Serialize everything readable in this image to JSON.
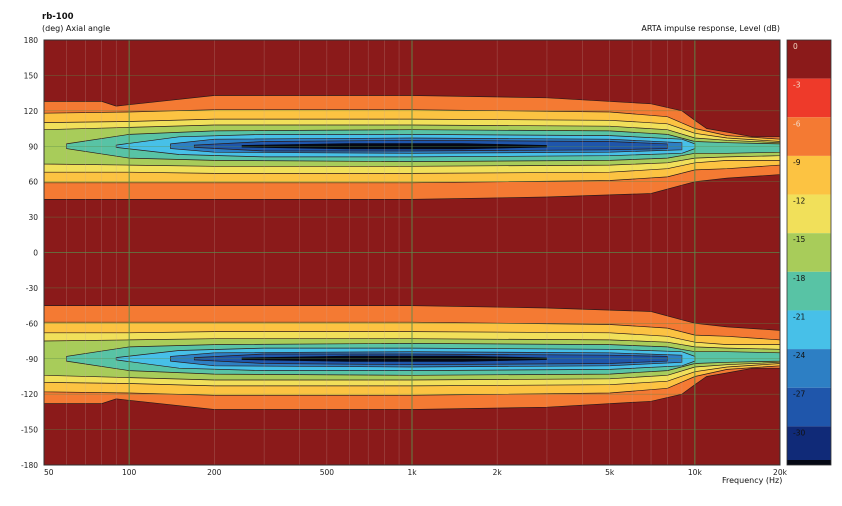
{
  "chart_data": {
    "type": "heatmap",
    "title": "rb-100",
    "ylabel": "(deg)  Axial angle",
    "xlabel": "Frequency  (Hz)",
    "colorbar_label": "ARTA impulse response, Level  (dB)",
    "x_scale": "log",
    "xlim": [
      50,
      20000
    ],
    "ylim": [
      -180,
      180
    ],
    "x_ticks": [
      {
        "value": 50,
        "label": "50"
      },
      {
        "value": 100,
        "label": "100"
      },
      {
        "value": 200,
        "label": "200"
      },
      {
        "value": 500,
        "label": "500"
      },
      {
        "value": 1000,
        "label": "1k"
      },
      {
        "value": 2000,
        "label": "2k"
      },
      {
        "value": 5000,
        "label": "5k"
      },
      {
        "value": 10000,
        "label": "10k"
      },
      {
        "value": 20000,
        "label": "20k"
      }
    ],
    "y_ticks": [
      180,
      150,
      120,
      90,
      60,
      30,
      0,
      -30,
      -60,
      -90,
      -120,
      -150,
      -180
    ],
    "grid": true,
    "colorbar": {
      "levels": [
        {
          "value": 0,
          "label": "0",
          "color": "#8b1a1a"
        },
        {
          "value": -3,
          "label": "-3",
          "color": "#ee3a2a"
        },
        {
          "value": -6,
          "label": "-6",
          "color": "#f47a33"
        },
        {
          "value": -9,
          "label": "-9",
          "color": "#fcc342"
        },
        {
          "value": -12,
          "label": "-12",
          "color": "#f1e05a"
        },
        {
          "value": -15,
          "label": "-15",
          "color": "#a8cc5a"
        },
        {
          "value": -18,
          "label": "-18",
          "color": "#58c3a5"
        },
        {
          "value": -21,
          "label": "-21",
          "color": "#47c0e8"
        },
        {
          "value": -24,
          "label": "-24",
          "color": "#2d7fc4"
        },
        {
          "value": -27,
          "label": "-27",
          "color": "#1f56ab"
        },
        {
          "value": -30,
          "label": "-30",
          "color": "#102a78"
        }
      ],
      "floor_color": "#050814"
    },
    "series": [
      {
        "angle_center": 90,
        "contours": [
          {
            "level": -3,
            "pts": [
              [
                50,
                128
              ],
              [
                80,
                128
              ],
              [
                90,
                124
              ],
              [
                200,
                133
              ],
              [
                1000,
                133
              ],
              [
                3000,
                131
              ],
              [
                7000,
                126
              ],
              [
                9000,
                120
              ],
              [
                10000,
                112
              ],
              [
                11000,
                105
              ],
              [
                13000,
                102
              ],
              [
                16000,
                98
              ],
              [
                20000,
                98
              ]
            ],
            "low": [
              [
                50,
                45
              ],
              [
                1000,
                45
              ],
              [
                3000,
                47
              ],
              [
                7000,
                50
              ],
              [
                10000,
                60
              ],
              [
                13000,
                63
              ],
              [
                20000,
                66
              ]
            ]
          },
          {
            "level": -6,
            "pts": [
              [
                50,
                118
              ],
              [
                100,
                119
              ],
              [
                200,
                121
              ],
              [
                1000,
                121
              ],
              [
                5000,
                119
              ],
              [
                8000,
                115
              ],
              [
                10000,
                105
              ],
              [
                13000,
                99
              ],
              [
                20000,
                96
              ]
            ],
            "low": [
              [
                50,
                59
              ],
              [
                1000,
                59
              ],
              [
                5000,
                61
              ],
              [
                8000,
                64
              ],
              [
                10000,
                70
              ],
              [
                13000,
                71
              ],
              [
                20000,
                74
              ]
            ]
          },
          {
            "level": -9,
            "pts": [
              [
                50,
                110
              ],
              [
                100,
                111
              ],
              [
                200,
                113
              ],
              [
                1000,
                113
              ],
              [
                5000,
                112
              ],
              [
                8000,
                109
              ],
              [
                10000,
                101
              ],
              [
                13000,
                97
              ],
              [
                20000,
                94
              ]
            ],
            "low": [
              [
                50,
                68
              ],
              [
                100,
                68
              ],
              [
                200,
                67
              ],
              [
                1000,
                67
              ],
              [
                5000,
                68
              ],
              [
                8000,
                71
              ],
              [
                10000,
                76
              ],
              [
                13000,
                78
              ],
              [
                20000,
                78
              ]
            ]
          },
          {
            "level": -12,
            "pts": [
              [
                50,
                104
              ],
              [
                100,
                106
              ],
              [
                200,
                108
              ],
              [
                1000,
                108
              ],
              [
                5000,
                107
              ],
              [
                8000,
                104
              ],
              [
                10000,
                97
              ],
              [
                13000,
                95
              ],
              [
                20000,
                93
              ]
            ],
            "low": [
              [
                50,
                75
              ],
              [
                100,
                74
              ],
              [
                200,
                73
              ],
              [
                1000,
                73
              ],
              [
                5000,
                74
              ],
              [
                8000,
                76
              ],
              [
                10000,
                80
              ],
              [
                13000,
                81
              ],
              [
                20000,
                82
              ]
            ]
          },
          {
            "level": -15,
            "pts": [
              [
                60,
                92
              ],
              [
                100,
                100
              ],
              [
                200,
                103
              ],
              [
                1000,
                104
              ],
              [
                5000,
                103
              ],
              [
                8000,
                100
              ],
              [
                10000,
                94
              ],
              [
                13000,
                93
              ],
              [
                20000,
                92
              ]
            ],
            "low": [
              [
                60,
                88
              ],
              [
                100,
                80
              ],
              [
                200,
                78
              ],
              [
                1000,
                77
              ],
              [
                5000,
                78
              ],
              [
                8000,
                80
              ],
              [
                10000,
                84
              ],
              [
                13000,
                84
              ],
              [
                20000,
                85
              ]
            ]
          },
          {
            "level": -18,
            "pts": [
              [
                90,
                91
              ],
              [
                150,
                98
              ],
              [
                300,
                100
              ],
              [
                1000,
                100
              ],
              [
                5000,
                99
              ],
              [
                9000,
                96
              ],
              [
                10000,
                92
              ]
            ],
            "low": [
              [
                90,
                89
              ],
              [
                150,
                83
              ],
              [
                300,
                81
              ],
              [
                1000,
                81
              ],
              [
                5000,
                82
              ],
              [
                9000,
                84
              ],
              [
                10000,
                88
              ]
            ]
          },
          {
            "level": -21,
            "pts": [
              [
                140,
                92
              ],
              [
                200,
                96
              ],
              [
                1000,
                97
              ],
              [
                5000,
                96
              ],
              [
                9000,
                93
              ]
            ],
            "low": [
              [
                140,
                88
              ],
              [
                200,
                85
              ],
              [
                1000,
                84
              ],
              [
                5000,
                85
              ],
              [
                9000,
                87
              ]
            ]
          },
          {
            "level": -24,
            "pts": [
              [
                170,
                91
              ],
              [
                300,
                94
              ],
              [
                1000,
                95
              ],
              [
                5000,
                94
              ],
              [
                8000,
                92
              ]
            ],
            "low": [
              [
                170,
                89
              ],
              [
                300,
                86
              ],
              [
                1000,
                86
              ],
              [
                5000,
                87
              ],
              [
                8000,
                88
              ]
            ]
          }
        ]
      }
    ]
  }
}
